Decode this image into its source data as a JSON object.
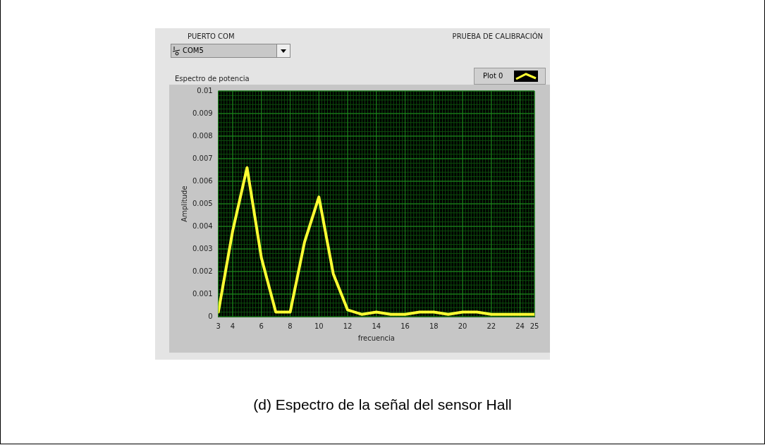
{
  "chart_data": {
    "type": "line",
    "title": "Espectro de potencia",
    "xlabel": "frecuencia",
    "ylabel": "Amplitude",
    "annotations": [
      "PUERTO COM",
      "COM5",
      "PRUEBA DE CALIBRACIÓN",
      "(d) Espectro de la señal del sensor Hall"
    ],
    "x": [
      3,
      4,
      5,
      6,
      7,
      8,
      9,
      10,
      11,
      12,
      13,
      14,
      15,
      16,
      17,
      18,
      19,
      20,
      21,
      22,
      23,
      24,
      25
    ],
    "series": [
      {
        "name": "Plot 0",
        "color": "#ffff33",
        "values": [
          0.0002,
          0.0038,
          0.0066,
          0.0026,
          0.0002,
          0.0002,
          0.0033,
          0.0053,
          0.0019,
          0.0003,
          0.0001,
          0.0002,
          0.0001,
          0.0001,
          0.0002,
          0.0002,
          0.0001,
          0.0002,
          0.0002,
          0.0001,
          0.0001,
          0.0001,
          0.0001
        ]
      }
    ],
    "xlim": [
      3,
      25
    ],
    "xticks": [
      3,
      4,
      6,
      8,
      10,
      12,
      14,
      16,
      18,
      20,
      22,
      24,
      25
    ],
    "ylim": [
      0,
      0.01
    ],
    "yticks": [
      0,
      0.001,
      0.002,
      0.003,
      0.004,
      0.005,
      0.006,
      0.007,
      0.008,
      0.009,
      0.01
    ],
    "grid": true,
    "legend": "top right",
    "marker": "none",
    "line_style": "solid"
  }
}
